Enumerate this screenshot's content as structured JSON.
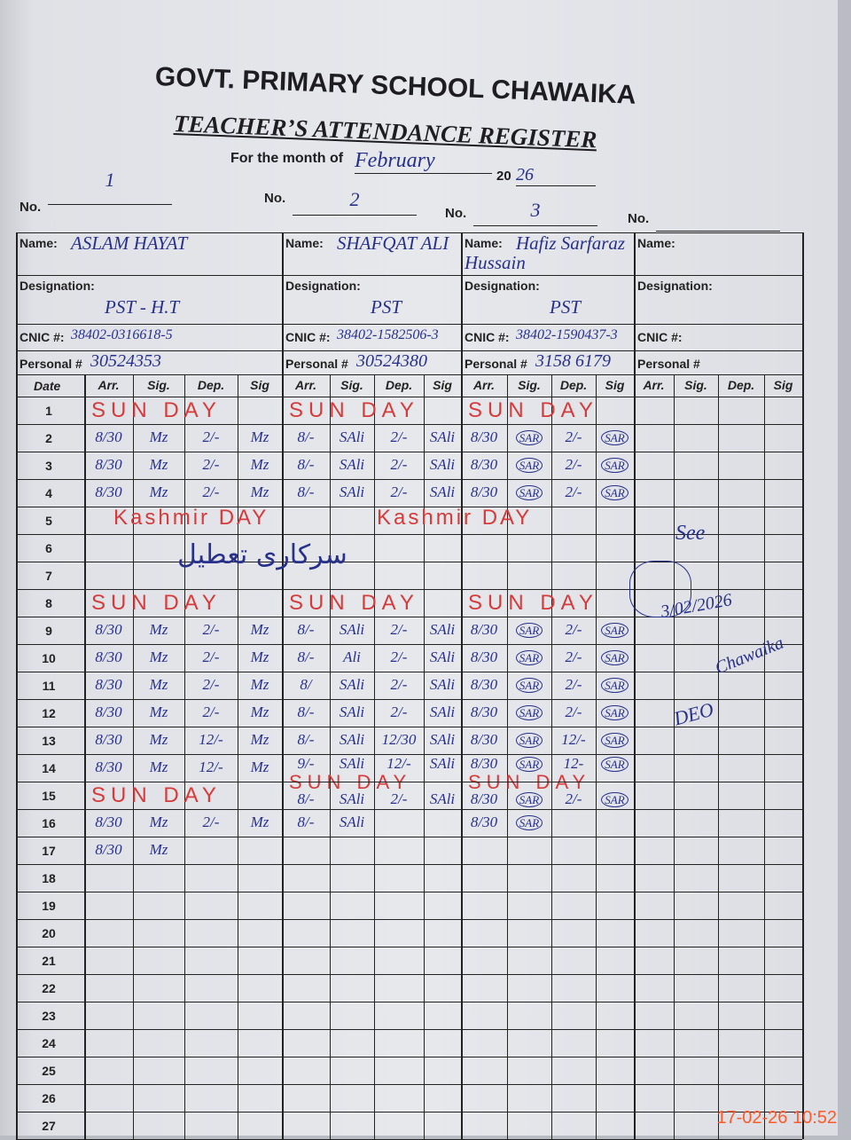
{
  "header": {
    "school": "GOVT. PRIMARY SCHOOL CHAWAIKA",
    "title": "TEACHER’S ATTENDANCE REGISTER",
    "month_label": "For the month of",
    "month_value": "February",
    "year_printed": "20",
    "year_written": "26"
  },
  "labels": {
    "no": "No.",
    "name": "Name:",
    "designation": "Designation:",
    "cnic": "CNIC #:",
    "personal": "Personal #",
    "date": "Date",
    "arr": "Arr.",
    "sig": "Sig.",
    "dep": "Dep.",
    "sig2": "Sig"
  },
  "teachers": [
    {
      "no": "1",
      "name": "ASLAM HAYAT",
      "designation": "PST - H.T",
      "cnic": "38402-0316618-5",
      "personal": "30524353",
      "entries": {
        "2": [
          "8/30",
          "Mz",
          "2/-",
          "Mz"
        ],
        "3": [
          "8/30",
          "Mz",
          "2/-",
          "Mz"
        ],
        "4": [
          "8/30",
          "Mz",
          "2/-",
          "Mz"
        ],
        "9": [
          "8/30",
          "Mz",
          "2/-",
          "Mz"
        ],
        "10": [
          "8/30",
          "Mz",
          "2/-",
          "Mz"
        ],
        "11": [
          "8/30",
          "Mz",
          "2/-",
          "Mz"
        ],
        "12": [
          "8/30",
          "Mz",
          "2/-",
          "Mz"
        ],
        "13": [
          "8/30",
          "Mz",
          "12/-",
          "Mz"
        ],
        "14": [
          "8/30",
          "Mz",
          "12/-",
          "Mz"
        ],
        "16": [
          "8/30",
          "Mz",
          "2/-",
          "Mz"
        ],
        "17": [
          "8/30",
          "Mz",
          "",
          ""
        ]
      }
    },
    {
      "no": "2",
      "name": "SHAFQAT ALI",
      "designation": "PST",
      "cnic": "38402-1582506-3",
      "personal": "30524380",
      "entries": {
        "2": [
          "8/-",
          "SAli",
          "2/-",
          "SAli"
        ],
        "3": [
          "8/-",
          "SAli",
          "2/-",
          "SAli"
        ],
        "4": [
          "8/-",
          "SAli",
          "2/-",
          "SAli"
        ],
        "9": [
          "8/-",
          "SAli",
          "2/-",
          "SAli"
        ],
        "10": [
          "8/-",
          "Ali",
          "2/-",
          "SAli"
        ],
        "11": [
          "8/",
          "SAli",
          "2/-",
          "SAli"
        ],
        "12": [
          "8/-",
          "SAli",
          "2/-",
          "SAli"
        ],
        "13": [
          "8/-",
          "SAli",
          "12/30",
          "SAli"
        ],
        "14": [
          "9/-",
          "SAli",
          "12/-",
          "SAli"
        ],
        "15": [
          "8/-",
          "SAli",
          "2/-",
          "SAli"
        ],
        "16": [
          "8/-",
          "SAli",
          "",
          ""
        ]
      }
    },
    {
      "no": "3",
      "name": "Hafiz Sarfaraz Hussain",
      "designation": "PST",
      "cnic": "38402-1590437-3",
      "personal": "3158 6179",
      "entries": {
        "2": [
          "8/30",
          "SAR",
          "2/-",
          "SAR"
        ],
        "3": [
          "8/30",
          "SAR",
          "2/-",
          "SAR"
        ],
        "4": [
          "8/30",
          "SAR",
          "2/-",
          "SAR"
        ],
        "9": [
          "8/30",
          "SAR",
          "2/-",
          "SAR"
        ],
        "10": [
          "8/30",
          "SAR",
          "2/-",
          "SAR"
        ],
        "11": [
          "8/30",
          "SAR",
          "2/-",
          "SAR"
        ],
        "12": [
          "8/30",
          "SAR",
          "2/-",
          "SAR"
        ],
        "13": [
          "8/30",
          "SAR",
          "12/-",
          "SAR"
        ],
        "14": [
          "8/30",
          "SAR",
          "12-",
          "SAR"
        ],
        "15": [
          "8/30",
          "SAR",
          "2/-",
          "SAR"
        ],
        "16": [
          "8/30",
          "SAR",
          "",
          ""
        ]
      }
    },
    {
      "no": "",
      "name": "",
      "designation": "",
      "cnic": "",
      "personal": "",
      "entries": {}
    }
  ],
  "annotations": {
    "sunday": "SUN DAY",
    "kashmir_1": "Kashmir DAY",
    "kashmir_2": "Kashmir DAY",
    "holiday_urdu": "سرکاری تعطیل",
    "remark_see": "See",
    "remark_date": "3/02/2026",
    "remark_deo": "DEO",
    "remark_place": "Chawaika"
  },
  "dates": [
    "1",
    "2",
    "3",
    "4",
    "5",
    "6",
    "7",
    "8",
    "9",
    "10",
    "11",
    "12",
    "13",
    "14",
    "15",
    "16",
    "17",
    "18",
    "19",
    "20",
    "21",
    "22",
    "23",
    "24",
    "25",
    "26",
    "27"
  ],
  "timestamp": "17-02-26  10:52",
  "colors": {
    "ink_blue": "#27308a",
    "ink_red": "#d63a3a",
    "timestamp": "#ff5a2a"
  }
}
